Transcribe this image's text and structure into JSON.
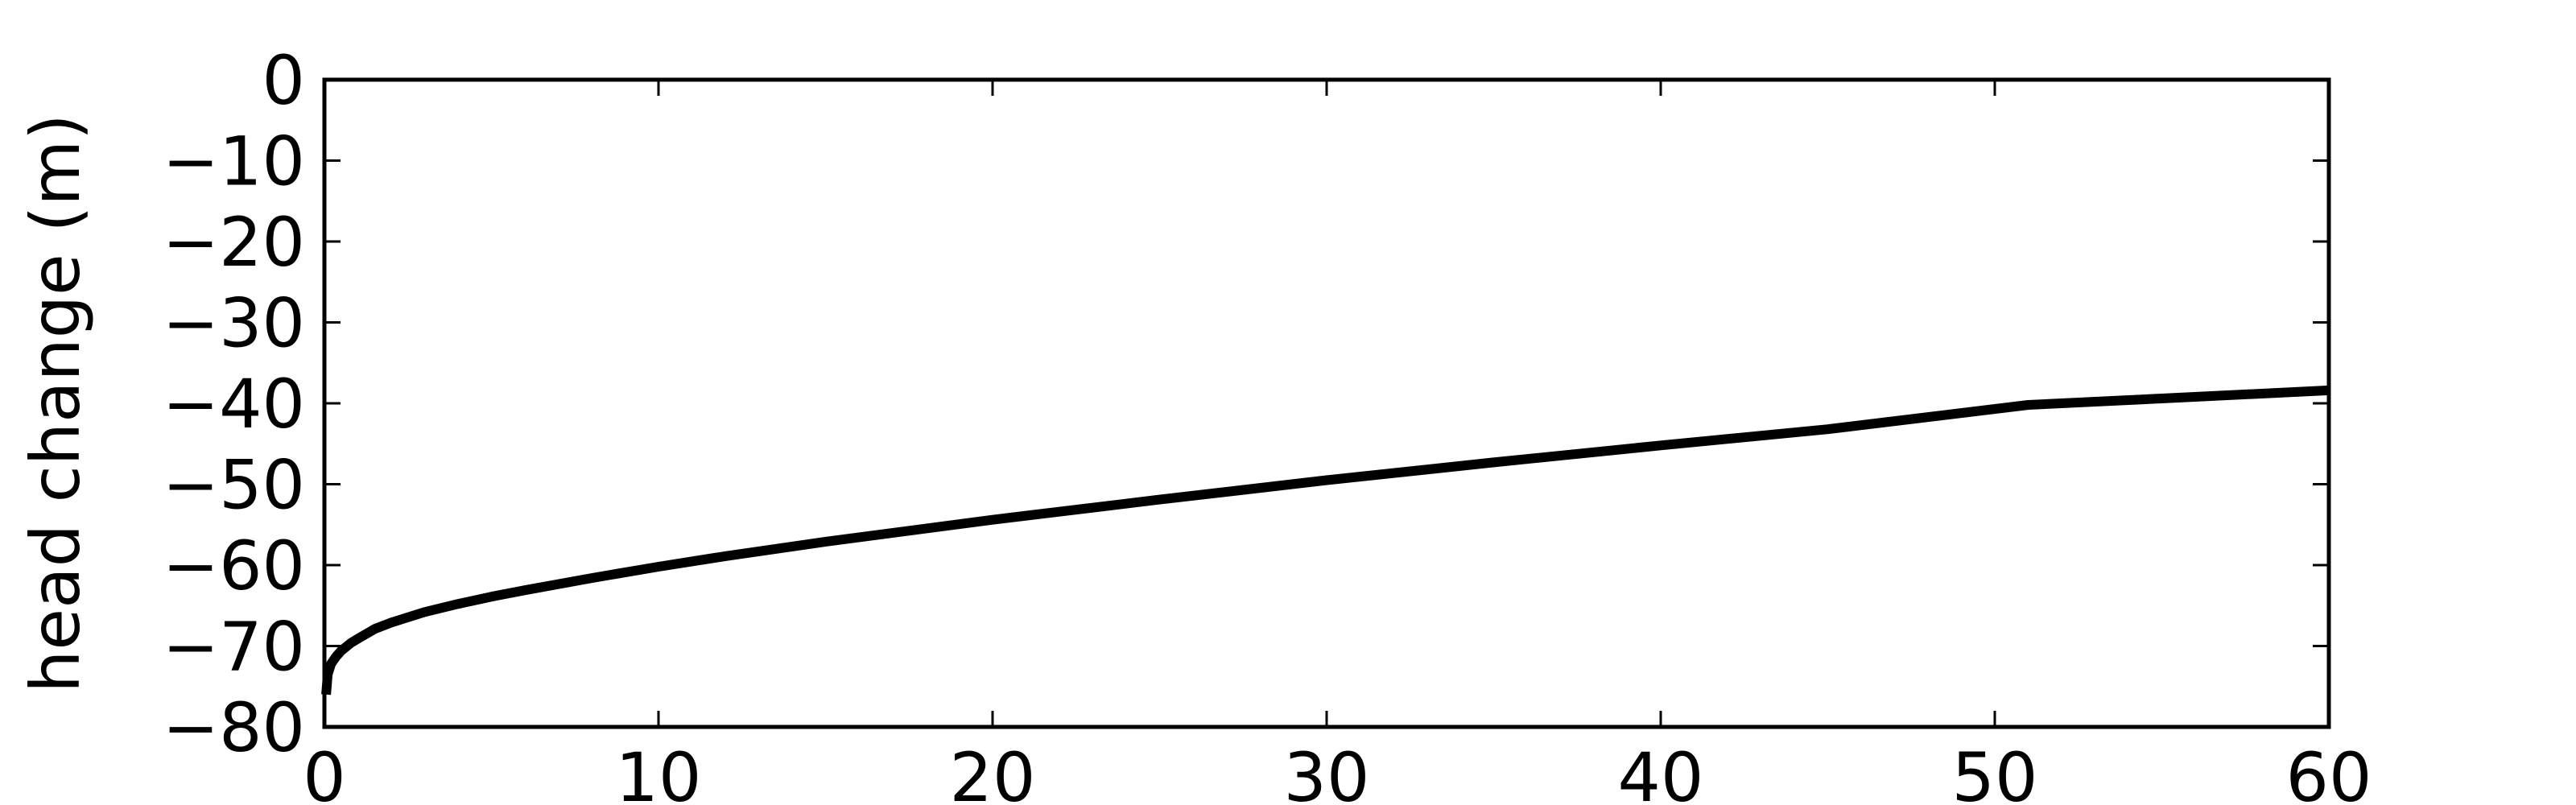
{
  "chart_data": {
    "type": "line",
    "title": "",
    "xlabel": "",
    "ylabel": "head change (m)",
    "xlim": [
      0,
      60
    ],
    "ylim": [
      -80,
      0
    ],
    "xticks": [
      0,
      10,
      20,
      30,
      40,
      50,
      60
    ],
    "yticks": [
      0,
      -10,
      -20,
      -30,
      -40,
      -50,
      -60,
      -70,
      -80
    ],
    "xtick_labels": [
      "0",
      "10",
      "20",
      "30",
      "40",
      "50",
      "60"
    ],
    "ytick_labels": [
      "0",
      "−10",
      "−20",
      "−30",
      "−40",
      "−50",
      "−60",
      "−70",
      "−80"
    ],
    "grid": false,
    "legend": "none",
    "series": [
      {
        "color": "#000000",
        "x": [
          0.05,
          0.1,
          0.2,
          0.35,
          0.5,
          0.8,
          1,
          1.5,
          2,
          3,
          4,
          5,
          6,
          8,
          10,
          12,
          15,
          20,
          25,
          30,
          35,
          40,
          45,
          51,
          55,
          60
        ],
        "y": [
          -76,
          -73.5,
          -72.2,
          -71.3,
          -70.6,
          -69.6,
          -69.1,
          -67.9,
          -67.1,
          -65.8,
          -64.8,
          -63.9,
          -63.1,
          -61.6,
          -60.2,
          -58.9,
          -57.1,
          -54.4,
          -51.9,
          -49.5,
          -47.3,
          -45.2,
          -43.2,
          -40.2,
          -39.4,
          -38.4
        ]
      }
    ]
  }
}
